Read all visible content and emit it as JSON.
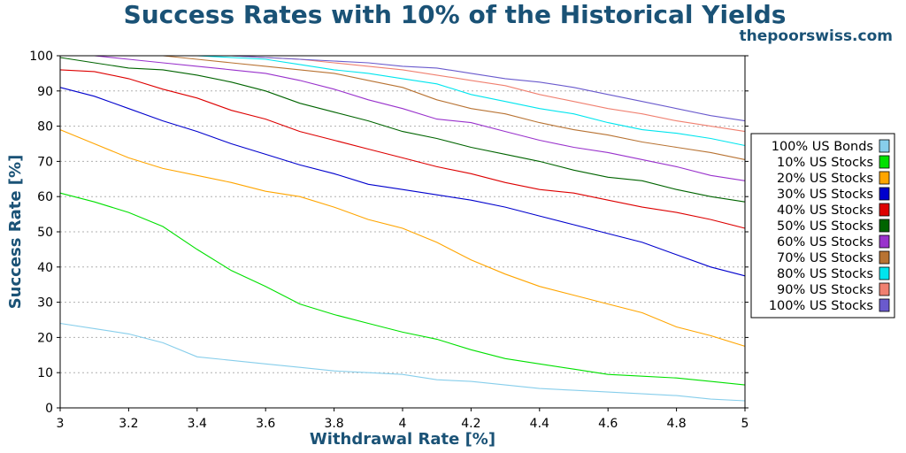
{
  "chart_data": {
    "type": "line",
    "title": "Success Rates with 10% of the Historical Yields",
    "source": "thepoorswiss.com",
    "xlabel": "Withdrawal Rate [%]",
    "ylabel": "Success Rate [%]",
    "xlim": [
      3,
      5
    ],
    "ylim": [
      0,
      100
    ],
    "xticks": [
      "3",
      "3.2",
      "3.4",
      "3.6",
      "3.8",
      "4",
      "4.2",
      "4.4",
      "4.6",
      "4.8",
      "5"
    ],
    "yticks": [
      "0",
      "10",
      "20",
      "30",
      "40",
      "50",
      "60",
      "70",
      "80",
      "90",
      "100"
    ],
    "grid": "horizontal-dotted",
    "legend_position": "right",
    "x": [
      3,
      3.1,
      3.2,
      3.3,
      3.4,
      3.5,
      3.6,
      3.7,
      3.8,
      3.9,
      4,
      4.1,
      4.2,
      4.3,
      4.4,
      4.5,
      4.6,
      4.7,
      4.8,
      4.9,
      5
    ],
    "series": [
      {
        "name": "100% US Bonds",
        "color": "#87ceeb",
        "values": [
          24,
          22.5,
          21,
          18.5,
          14.5,
          13.5,
          12.5,
          11.5,
          10.5,
          10,
          9.5,
          8,
          7.5,
          6.5,
          5.5,
          5,
          4.5,
          4,
          3.5,
          2.5,
          2
        ]
      },
      {
        "name": "10% US Stocks",
        "color": "#00e000",
        "values": [
          61,
          58.5,
          55.5,
          51.5,
          45,
          39,
          34.5,
          29.5,
          26.5,
          24,
          21.5,
          19.5,
          16.5,
          14,
          12.5,
          11,
          9.5,
          9,
          8.5,
          7.5,
          6.5
        ]
      },
      {
        "name": "20% US Stocks",
        "color": "#ffa500",
        "values": [
          79,
          75,
          71,
          68,
          66,
          64,
          61.5,
          60,
          57,
          53.5,
          51,
          47,
          42,
          38,
          34.5,
          32,
          29.5,
          27,
          23,
          20.5,
          17.5
        ]
      },
      {
        "name": "30% US Stocks",
        "color": "#0000cd",
        "values": [
          91,
          88.5,
          85,
          81.5,
          78.5,
          75,
          72,
          69,
          66.5,
          63.5,
          62,
          60.5,
          59,
          57,
          54.5,
          52,
          49.5,
          47,
          43.5,
          40,
          37.5
        ]
      },
      {
        "name": "40% US Stocks",
        "color": "#dd0000",
        "values": [
          96,
          95.5,
          93.5,
          90.5,
          88,
          84.5,
          82,
          78.5,
          76,
          73.5,
          71,
          68.5,
          66.5,
          64,
          62,
          61,
          59,
          57,
          55.5,
          53.5,
          51
        ]
      },
      {
        "name": "50% US Stocks",
        "color": "#006400",
        "values": [
          99.5,
          98,
          96.5,
          96,
          94.5,
          92.5,
          90,
          86.5,
          84,
          81.5,
          78.5,
          76.5,
          74,
          72,
          70,
          67.5,
          65.5,
          64.5,
          62,
          60,
          58.5
        ]
      },
      {
        "name": "60% US Stocks",
        "color": "#9932cc",
        "values": [
          100,
          100,
          99,
          98,
          97,
          96,
          95,
          93,
          90.5,
          87.5,
          85,
          82,
          81,
          78.5,
          76,
          74,
          72.5,
          70.5,
          68.5,
          66,
          64.5
        ]
      },
      {
        "name": "70% US Stocks",
        "color": "#b87333",
        "values": [
          100,
          100,
          100,
          100,
          99,
          98,
          97,
          96,
          95,
          93,
          91,
          87.5,
          85,
          83.5,
          81,
          79,
          77.5,
          75.5,
          74,
          72.5,
          70.5
        ]
      },
      {
        "name": "80% US Stocks",
        "color": "#00e5ee",
        "values": [
          100,
          100,
          100,
          100,
          100,
          99.5,
          99,
          97.5,
          96,
          95,
          93.5,
          92,
          89,
          87,
          85,
          83.5,
          81,
          79,
          78,
          76.5,
          74.5
        ]
      },
      {
        "name": "90% US Stocks",
        "color": "#f08070",
        "values": [
          100,
          100,
          100,
          100,
          100,
          100,
          99.5,
          99,
          98,
          97,
          96,
          94.5,
          93,
          91.5,
          89,
          87,
          85,
          83.5,
          81.5,
          80,
          78.5
        ]
      },
      {
        "name": "100% US Stocks",
        "color": "#6a5acd",
        "values": [
          100,
          100,
          100,
          100,
          100,
          100,
          99.5,
          99,
          98.5,
          98,
          97,
          96.5,
          95,
          93.5,
          92.5,
          91,
          89,
          87,
          85,
          83,
          81.5
        ]
      }
    ]
  }
}
